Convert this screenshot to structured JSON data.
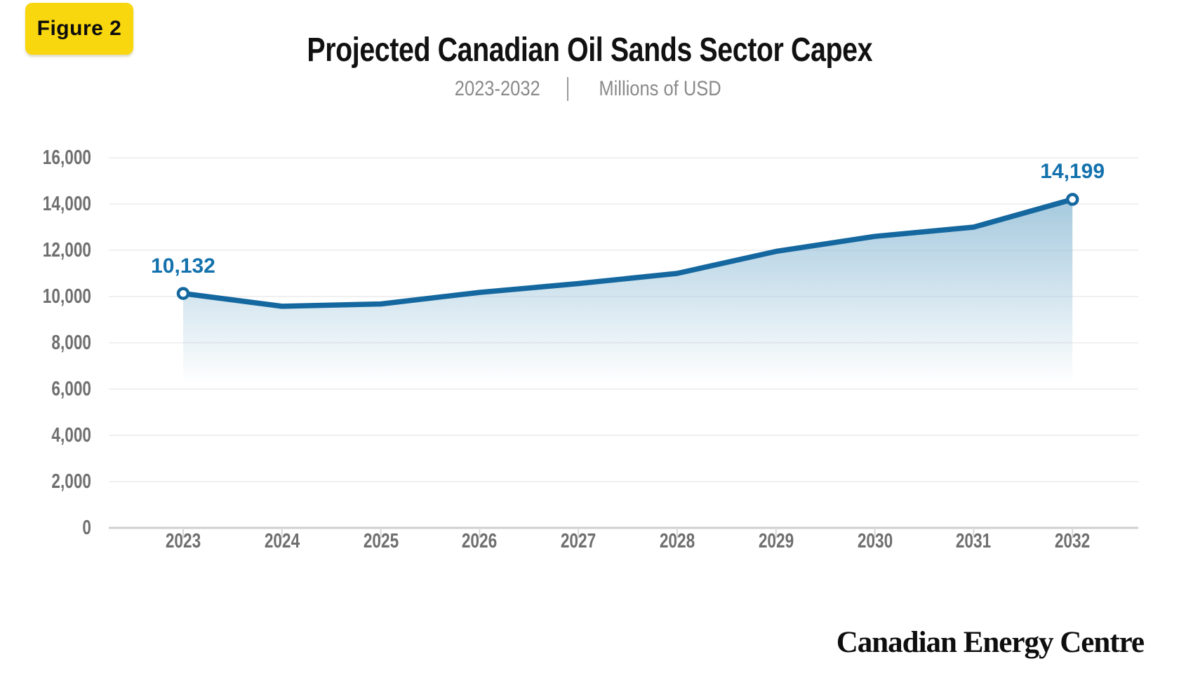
{
  "figure_label": "Figure 2",
  "header": {
    "title": "Projected Canadian Oil Sands Sector Capex",
    "subtitle_range": "2023-2032",
    "subtitle_separator": "|",
    "subtitle_units": "Millions of USD"
  },
  "footer": {
    "brand": "Canadian Energy Centre"
  },
  "colors": {
    "badge_yellow": "#F8D70E",
    "line_blue": "#15689F",
    "value_label_blue": "#1371AD",
    "area_blue": "#8FBCD6",
    "axis_text_gray": "#6F6F6F",
    "subtitle_gray": "#8A8A8A",
    "gridline_gray": "#ECECEC",
    "axis_line_gray": "#CFCFCF",
    "tick_gray": "#D8D8D8"
  },
  "chart_data": {
    "type": "area",
    "title": "Projected Canadian Oil Sands Sector Capex",
    "subtitle": "2023-2032 | Millions of USD",
    "units": "Millions of USD",
    "x": [
      "2023",
      "2024",
      "2025",
      "2026",
      "2027",
      "2028",
      "2029",
      "2030",
      "2031",
      "2032"
    ],
    "values": [
      10132,
      9580,
      9680,
      10180,
      10560,
      11000,
      11950,
      12600,
      13000,
      14199
    ],
    "labeled_points": [
      {
        "year": "2023",
        "value": 10132,
        "label": "10,132"
      },
      {
        "year": "2032",
        "value": 14199,
        "label": "14,199"
      }
    ],
    "ylim": [
      0,
      16000
    ],
    "yticks": [
      {
        "value": 0,
        "label": "0"
      },
      {
        "value": 2000,
        "label": "2,000"
      },
      {
        "value": 4000,
        "label": "4,000"
      },
      {
        "value": 6000,
        "label": "6,000"
      },
      {
        "value": 8000,
        "label": "8,000"
      },
      {
        "value": 10000,
        "label": "10,000"
      },
      {
        "value": 12000,
        "label": "12,000"
      },
      {
        "value": 14000,
        "label": "14,000"
      },
      {
        "value": 16000,
        "label": "16,000"
      }
    ],
    "grid": "horizontal",
    "legend": "none",
    "xlabel": "",
    "ylabel": ""
  }
}
